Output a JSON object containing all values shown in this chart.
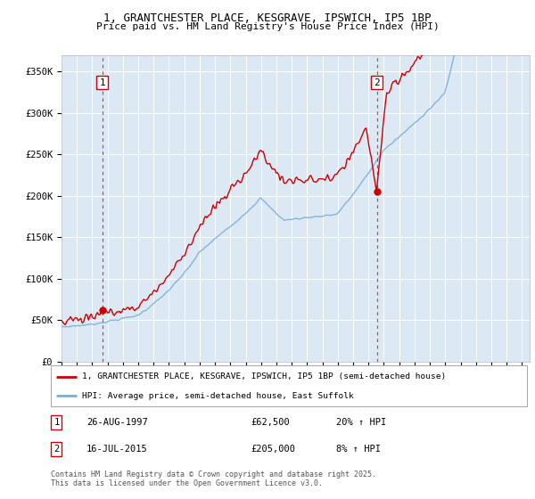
{
  "title_line1": "1, GRANTCHESTER PLACE, KESGRAVE, IPSWICH, IP5 1BP",
  "title_line2": "Price paid vs. HM Land Registry's House Price Index (HPI)",
  "bg_color": "#dce9f5",
  "grid_color": "#ffffff",
  "ylim": [
    0,
    370000
  ],
  "yticks": [
    0,
    50000,
    100000,
    150000,
    200000,
    250000,
    300000,
    350000
  ],
  "ytick_labels": [
    "£0",
    "£50K",
    "£100K",
    "£150K",
    "£200K",
    "£250K",
    "£300K",
    "£350K"
  ],
  "xmin_year": 1995.0,
  "xmax_year": 2025.5,
  "xticks": [
    1995,
    1996,
    1997,
    1998,
    1999,
    2000,
    2001,
    2002,
    2003,
    2004,
    2005,
    2006,
    2007,
    2008,
    2009,
    2010,
    2011,
    2012,
    2013,
    2014,
    2015,
    2016,
    2017,
    2018,
    2019,
    2020,
    2021,
    2022,
    2023,
    2024,
    2025
  ],
  "sale1_x": 1997.65,
  "sale1_y": 62500,
  "sale2_x": 2015.54,
  "sale2_y": 205000,
  "line1_color": "#cc0000",
  "line2_color": "#7bafd4",
  "legend_line1": "1, GRANTCHESTER PLACE, KESGRAVE, IPSWICH, IP5 1BP (semi-detached house)",
  "legend_line2": "HPI: Average price, semi-detached house, East Suffolk",
  "annotation1_label": "1",
  "annotation2_label": "2",
  "table_row1": [
    "1",
    "26-AUG-1997",
    "£62,500",
    "20% ↑ HPI"
  ],
  "table_row2": [
    "2",
    "16-JUL-2015",
    "£205,000",
    "8% ↑ HPI"
  ],
  "footer": "Contains HM Land Registry data © Crown copyright and database right 2025.\nThis data is licensed under the Open Government Licence v3.0."
}
